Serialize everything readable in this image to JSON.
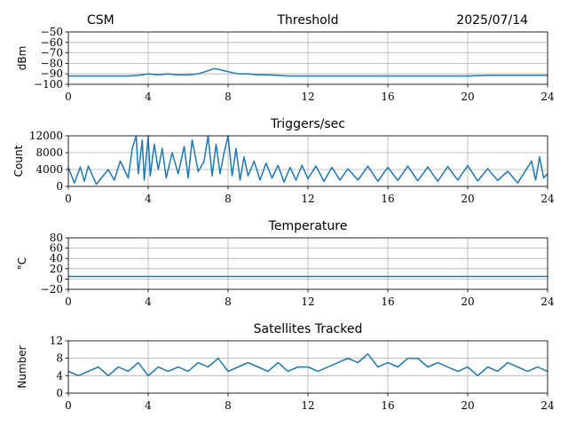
{
  "header": {
    "left_label": "CSM",
    "date": "2025/07/14"
  },
  "colors": {
    "series": "#1f77b4",
    "grid": "#b0b0b0"
  },
  "chart_data": [
    {
      "type": "line",
      "title": "Threshold",
      "ylabel": "dBm",
      "xlabel": "",
      "xlim": [
        0,
        24
      ],
      "ylim": [
        -100,
        -50
      ],
      "xticks": [
        0,
        4,
        8,
        12,
        16,
        20,
        24
      ],
      "yticks": [
        -100,
        -90,
        -80,
        -70,
        -60,
        -50
      ],
      "grid": true,
      "series": [
        {
          "x": [
            0,
            1,
            2,
            3,
            3.5,
            4,
            4.5,
            5,
            5.5,
            6,
            6.5,
            7,
            7.3,
            7.6,
            8,
            8.5,
            9,
            9.5,
            10,
            11,
            12,
            14,
            16,
            18,
            20,
            21,
            22,
            23,
            24
          ],
          "y": [
            -92,
            -92,
            -92,
            -92,
            -91.5,
            -90,
            -91,
            -90,
            -91,
            -91,
            -90,
            -87,
            -85,
            -86,
            -88,
            -90,
            -90,
            -91,
            -91,
            -92,
            -92,
            -92,
            -92,
            -92,
            -92,
            -91.5,
            -91.5,
            -91.5,
            -91.5
          ]
        }
      ]
    },
    {
      "type": "line",
      "title": "Triggers/sec",
      "ylabel": "Count",
      "xlabel": "",
      "xlim": [
        0,
        24
      ],
      "ylim": [
        0,
        12000
      ],
      "xticks": [
        0,
        4,
        8,
        12,
        16,
        20,
        24
      ],
      "yticks": [
        0,
        4000,
        8000,
        12000
      ],
      "grid": true,
      "series": [
        {
          "x": [
            0,
            0.3,
            0.6,
            0.8,
            1,
            1.4,
            2,
            2.3,
            2.6,
            3,
            3.2,
            3.4,
            3.5,
            3.7,
            3.8,
            4,
            4.1,
            4.3,
            4.5,
            4.7,
            4.9,
            5.2,
            5.5,
            5.8,
            6,
            6.2,
            6.5,
            6.8,
            7,
            7.2,
            7.4,
            7.6,
            7.8,
            8,
            8.2,
            8.4,
            8.6,
            8.8,
            9,
            9.3,
            9.6,
            9.9,
            10.2,
            10.5,
            10.8,
            11.1,
            11.4,
            11.7,
            12,
            12.4,
            12.8,
            13.2,
            13.6,
            14,
            14.5,
            15,
            15.5,
            16,
            16.5,
            17,
            17.5,
            18,
            18.5,
            19,
            19.5,
            20,
            20.5,
            21,
            21.5,
            22,
            22.5,
            23,
            23.2,
            23.4,
            23.6,
            23.8,
            24
          ],
          "y": [
            4500,
            800,
            4600,
            1200,
            4800,
            500,
            4000,
            1500,
            6000,
            2000,
            9000,
            12000,
            3000,
            11000,
            1500,
            12000,
            2500,
            10000,
            4000,
            9000,
            2000,
            8000,
            3000,
            9500,
            2000,
            11000,
            3500,
            6000,
            12000,
            2500,
            10000,
            3000,
            8000,
            12000,
            2500,
            9000,
            1500,
            7000,
            2500,
            6000,
            1500,
            5500,
            2000,
            5000,
            1000,
            4500,
            1500,
            5000,
            1800,
            4800,
            1200,
            4500,
            1500,
            4200,
            1500,
            4800,
            1200,
            4500,
            1400,
            4800,
            1300,
            4600,
            1200,
            4700,
            1500,
            4900,
            1300,
            4200,
            1400,
            3600,
            800,
            4500,
            6000,
            1500,
            7000,
            2000,
            3000
          ]
        }
      ]
    },
    {
      "type": "line",
      "title": "Temperature",
      "ylabel": "°C",
      "xlabel": "",
      "xlim": [
        0,
        24
      ],
      "ylim": [
        -20,
        80
      ],
      "xticks": [
        0,
        4,
        8,
        12,
        16,
        20,
        24
      ],
      "yticks": [
        -20,
        0,
        20,
        40,
        60,
        80
      ],
      "grid": true,
      "series": [
        {
          "x": [
            0,
            24
          ],
          "y": [
            5,
            5
          ]
        }
      ]
    },
    {
      "type": "line",
      "title": "Satellites Tracked",
      "ylabel": "Number",
      "xlabel": "",
      "xlim": [
        0,
        24
      ],
      "ylim": [
        0,
        12
      ],
      "xticks": [
        0,
        4,
        8,
        12,
        16,
        20,
        24
      ],
      "yticks": [
        0,
        4,
        8,
        12
      ],
      "grid": true,
      "series": [
        {
          "x": [
            0,
            0.5,
            1,
            1.5,
            2,
            2.5,
            3,
            3.5,
            4,
            4.5,
            5,
            5.5,
            6,
            6.5,
            7,
            7.5,
            8,
            8.5,
            9,
            9.5,
            10,
            10.5,
            11,
            11.5,
            12,
            12.5,
            13,
            13.5,
            14,
            14.5,
            15,
            15.5,
            16,
            16.5,
            17,
            17.5,
            18,
            18.5,
            19,
            19.5,
            20,
            20.5,
            21,
            21.5,
            22,
            22.5,
            23,
            23.5,
            24
          ],
          "y": [
            5,
            4,
            5,
            6,
            4,
            6,
            5,
            7,
            4,
            6,
            5,
            6,
            5,
            7,
            6,
            8,
            5,
            6,
            7,
            6,
            5,
            7,
            5,
            6,
            6,
            5,
            6,
            7,
            8,
            7,
            9,
            6,
            7,
            6,
            8,
            8,
            6,
            7,
            6,
            5,
            6,
            4,
            6,
            5,
            7,
            6,
            5,
            6,
            5
          ]
        }
      ]
    }
  ]
}
